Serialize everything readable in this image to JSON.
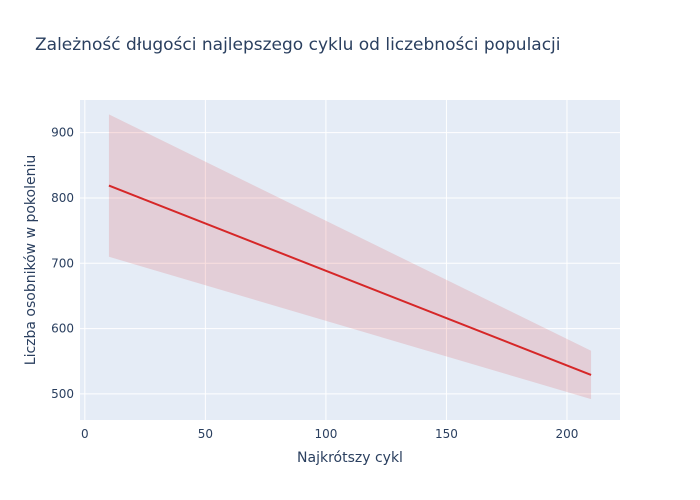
{
  "chart_data": {
    "type": "line",
    "title": "Zależność długości najlepszego cyklu od liczebności populacji",
    "xlabel": "Najkrótszy cykl",
    "ylabel": "Liczba osobników w pokoleniu",
    "xlim": [
      -2,
      222
    ],
    "ylim": [
      460,
      950
    ],
    "x_ticks": [
      0,
      50,
      100,
      150,
      200
    ],
    "y_ticks": [
      500,
      600,
      700,
      800,
      900
    ],
    "grid": true,
    "legend": "none",
    "series": [
      {
        "x": [
          10,
          210
        ],
        "values": [
          819,
          529
        ],
        "band_upper": [
          928,
          566
        ],
        "band_lower": [
          710,
          492
        ]
      }
    ]
  },
  "colors": {
    "plot_background": "#e5ecf6",
    "grid": "#ffffff",
    "line": "#d62728",
    "band": "rgba(214,39,40,0.15)",
    "text": "#2a3f5f"
  }
}
